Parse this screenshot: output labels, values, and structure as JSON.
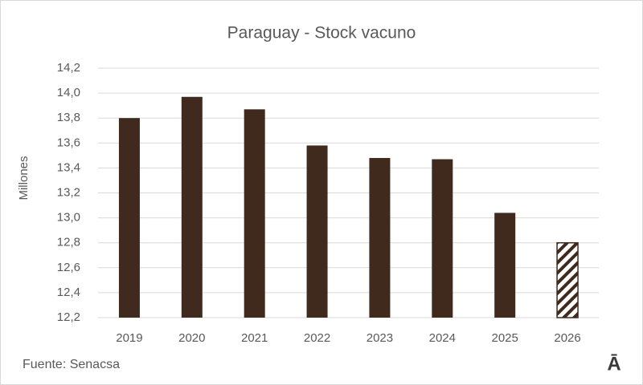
{
  "chart_data": {
    "type": "bar",
    "title": "Paraguay - Stock vacuno",
    "y_label": "Millones",
    "source": "Fuente: Senacsa",
    "logo": "Ā",
    "categories": [
      "2019",
      "2020",
      "2021",
      "2022",
      "2023",
      "2024",
      "2025",
      "2026"
    ],
    "values": [
      13.8,
      13.97,
      13.87,
      13.58,
      13.48,
      13.47,
      13.04,
      12.8
    ],
    "hatched": [
      false,
      false,
      false,
      false,
      false,
      false,
      false,
      true
    ],
    "color": "#3f2a1d",
    "ylim": [
      12.2,
      14.2
    ],
    "yticks": [
      {
        "value": 12.2,
        "label": "12,2"
      },
      {
        "value": 12.4,
        "label": "12,4"
      },
      {
        "value": 12.6,
        "label": "12,6"
      },
      {
        "value": 12.8,
        "label": "12,8"
      },
      {
        "value": 13.0,
        "label": "13,0"
      },
      {
        "value": 13.2,
        "label": "13,2"
      },
      {
        "value": 13.4,
        "label": "13,4"
      },
      {
        "value": 13.6,
        "label": "13,6"
      },
      {
        "value": 13.8,
        "label": "13,8"
      },
      {
        "value": 14.0,
        "label": "14,0"
      },
      {
        "value": 14.2,
        "label": "14,2"
      }
    ],
    "grid": true
  }
}
